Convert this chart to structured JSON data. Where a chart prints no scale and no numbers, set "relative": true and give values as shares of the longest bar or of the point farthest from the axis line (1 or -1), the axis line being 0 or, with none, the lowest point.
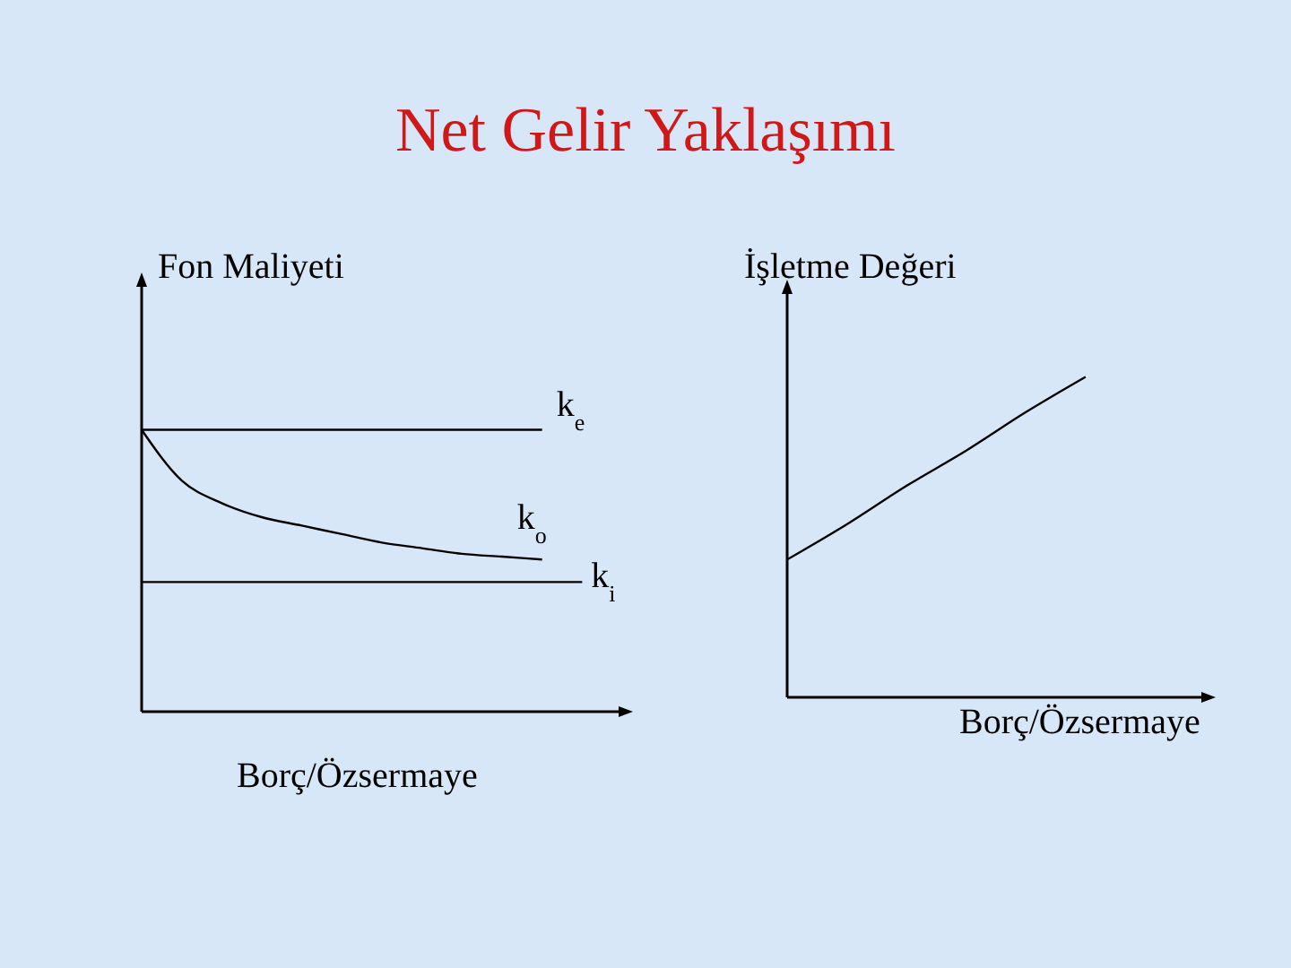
{
  "chart_data": [
    {
      "type": "line",
      "title": "Net Gelir Yaklaşımı",
      "ylabel": "Fon Maliyeti",
      "xlabel": "Borç/Özsermaye",
      "relative": true,
      "marker": "none",
      "categories": [
        null,
        null,
        null,
        null,
        null,
        null,
        null,
        null,
        null,
        null,
        null,
        null,
        null
      ],
      "series": [
        {
          "name": "k$_{e}$",
          "color": "#000000",
          "values": [
            1,
            1,
            1,
            1,
            1,
            1,
            1,
            1,
            1,
            1,
            1,
            null,
            null
          ]
        },
        {
          "name": "k$_{o}$",
          "color": "#000000",
          "values": [
            1,
            0.82,
            0.74,
            0.69,
            0.66,
            0.63,
            0.6,
            0.58,
            0.56,
            0.55,
            0.54,
            null,
            null
          ]
        },
        {
          "name": "k$_{i}$",
          "color": "#000000",
          "values": [
            0.46,
            0.46,
            0.46,
            0.46,
            0.46,
            0.46,
            0.46,
            0.46,
            0.46,
            0.46,
            0.46,
            0.46,
            null
          ]
        }
      ]
    },
    {
      "type": "line",
      "ylabel": "İşletme Değeri",
      "xlabel": "Borç/Özsermaye",
      "relative": true,
      "marker": "none",
      "categories": [
        null,
        null,
        null,
        null,
        null,
        null,
        null,
        null
      ],
      "series": [
        {
          "color": "#000000",
          "values": [
            0.43,
            0.54,
            0.66,
            0.77,
            0.89,
            1,
            null,
            null
          ]
        }
      ]
    }
  ]
}
